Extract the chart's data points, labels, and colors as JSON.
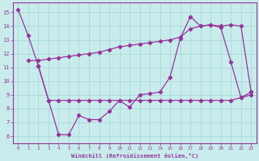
{
  "xlabel": "Windchill (Refroidissement éolien,°C)",
  "background_color": "#c8ecec",
  "line_color": "#993399",
  "grid_color": "#a8d8d8",
  "xlim": [
    -0.5,
    23.5
  ],
  "ylim": [
    5.5,
    15.7
  ],
  "yticks": [
    6,
    7,
    8,
    9,
    10,
    11,
    12,
    13,
    14,
    15
  ],
  "xticks": [
    0,
    1,
    2,
    3,
    4,
    5,
    6,
    7,
    8,
    9,
    10,
    11,
    12,
    13,
    14,
    15,
    16,
    17,
    18,
    19,
    20,
    21,
    22,
    23
  ],
  "line1_x": [
    0,
    1,
    2,
    3,
    4,
    5,
    6,
    7,
    8,
    9,
    10,
    11,
    12,
    13,
    14,
    15,
    16,
    17,
    18,
    19,
    20,
    21,
    22,
    23
  ],
  "line1_y": [
    15.2,
    13.3,
    11.1,
    8.6,
    6.1,
    6.1,
    7.5,
    7.2,
    7.2,
    7.8,
    8.6,
    8.1,
    9.0,
    9.1,
    9.2,
    10.3,
    13.1,
    14.7,
    14.0,
    14.1,
    13.9,
    11.4,
    8.8,
    9.2
  ],
  "line2_x": [
    2,
    3,
    4,
    5,
    6,
    7,
    8,
    9,
    10,
    11,
    12,
    13,
    14,
    15,
    16,
    17,
    18,
    19,
    20,
    21,
    22,
    23
  ],
  "line2_y": [
    11.1,
    8.6,
    8.6,
    8.6,
    8.6,
    8.6,
    8.6,
    8.6,
    8.6,
    8.6,
    8.6,
    8.6,
    8.6,
    8.6,
    8.6,
    8.6,
    8.6,
    8.6,
    8.6,
    8.6,
    8.8,
    9.0
  ],
  "line3_x": [
    1,
    2,
    3,
    4,
    5,
    6,
    7,
    8,
    9,
    10,
    11,
    12,
    13,
    14,
    15,
    16,
    17,
    18,
    19,
    20,
    21,
    22,
    23
  ],
  "line3_y": [
    11.5,
    11.5,
    11.6,
    11.7,
    11.8,
    11.9,
    12.0,
    12.1,
    12.3,
    12.5,
    12.6,
    12.7,
    12.8,
    12.9,
    13.0,
    13.2,
    13.8,
    14.0,
    14.1,
    14.0,
    14.1,
    14.0,
    9.2
  ]
}
